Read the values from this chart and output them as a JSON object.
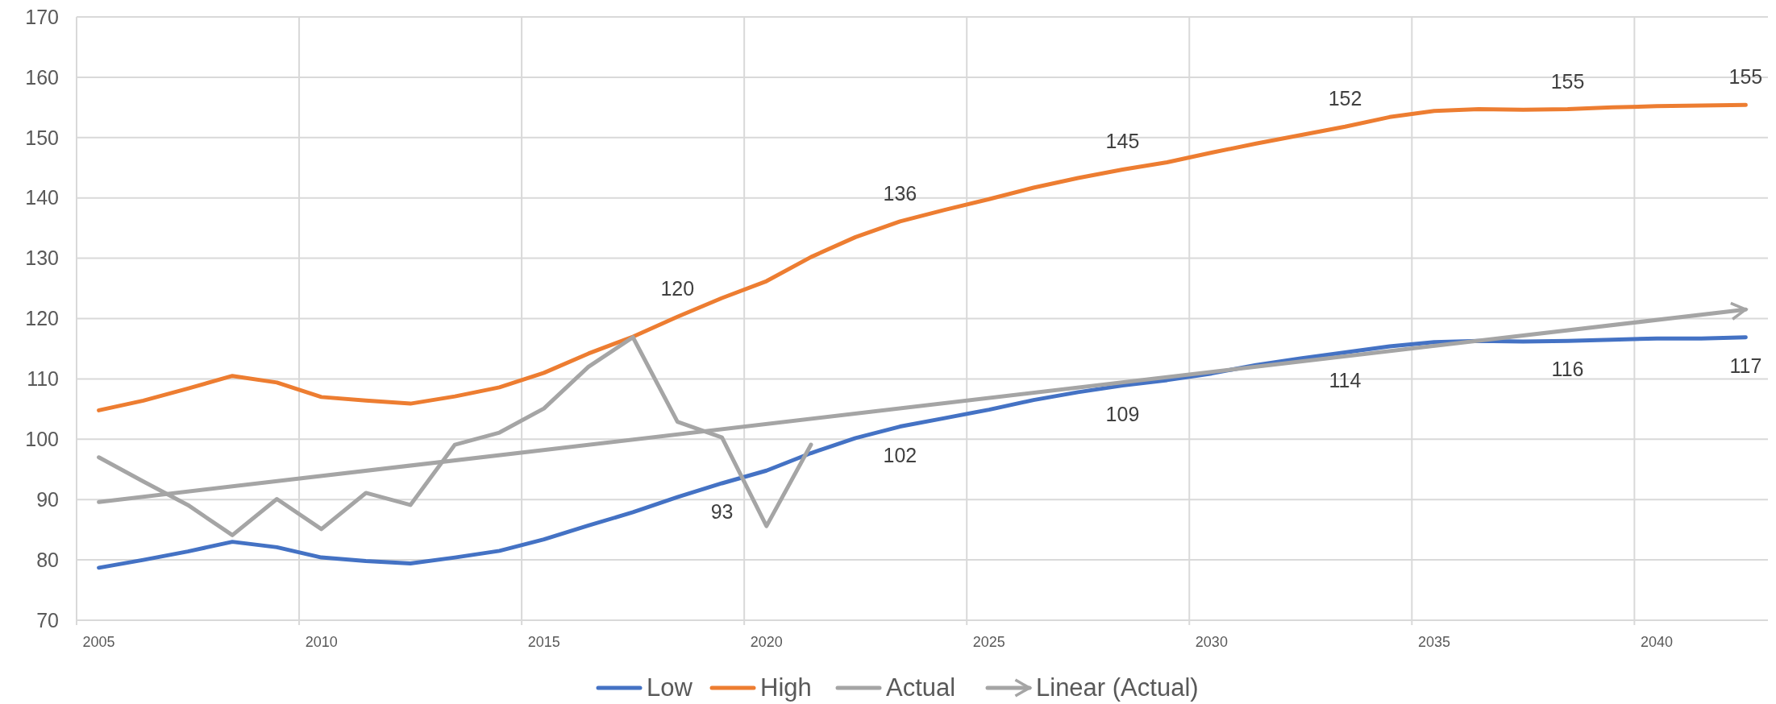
{
  "chart_data": {
    "type": "line",
    "xlim": [
      2004.5,
      2042.5
    ],
    "ylim": [
      70,
      170
    ],
    "xticks": [
      {
        "value": 2004.5,
        "label": null
      },
      2005,
      {
        "value": 2009.5,
        "label": null
      },
      2010,
      {
        "value": 2014.5,
        "label": null
      },
      2015,
      {
        "value": 2019.5,
        "label": null
      },
      2020,
      {
        "value": 2024.5,
        "label": null
      },
      2025,
      {
        "value": 2029.5,
        "label": null
      },
      2030,
      {
        "value": 2034.5,
        "label": null
      },
      2035,
      {
        "value": 2039.5,
        "label": null
      },
      2040
    ],
    "yticks": [
      70,
      80,
      90,
      100,
      110,
      120,
      130,
      140,
      150,
      160,
      170
    ],
    "grid": true,
    "legend": "bottom",
    "marker": "none",
    "line_style": "solid",
    "series": [
      {
        "name": "Low",
        "color": "#4472c4",
        "x": [
          2005,
          2006,
          2007,
          2008,
          2009,
          2010,
          2011,
          2012,
          2013,
          2014,
          2015,
          2016,
          2017,
          2018,
          2019,
          2020,
          2021,
          2022,
          2023,
          2024,
          2025,
          2026,
          2027,
          2028,
          2029,
          2030,
          2031,
          2032,
          2033,
          2034,
          2035,
          2036,
          2037,
          2038,
          2039,
          2040,
          2041,
          2042
        ],
        "values": [
          78.7,
          80.0,
          81.4,
          83.0,
          82.1,
          80.4,
          79.8,
          79.4,
          80.4,
          81.5,
          83.4,
          85.7,
          87.9,
          90.4,
          92.7,
          94.8,
          97.7,
          100.2,
          102.1,
          103.5,
          104.9,
          106.5,
          107.8,
          108.9,
          109.8,
          110.9,
          112.3,
          113.4,
          114.4,
          115.4,
          116.1,
          116.3,
          116.2,
          116.3,
          116.5,
          116.7,
          116.7,
          116.9
        ],
        "value_labels": [
          null,
          null,
          null,
          null,
          null,
          null,
          null,
          null,
          null,
          null,
          null,
          null,
          null,
          null,
          "93",
          null,
          null,
          null,
          "102",
          null,
          null,
          null,
          null,
          "109",
          null,
          null,
          null,
          null,
          "114",
          null,
          null,
          null,
          null,
          "116",
          null,
          null,
          null,
          "117"
        ]
      },
      {
        "name": "High",
        "color": "#ed7d31",
        "x": [
          2005,
          2006,
          2007,
          2008,
          2009,
          2010,
          2011,
          2012,
          2013,
          2014,
          2015,
          2016,
          2017,
          2018,
          2019,
          2020,
          2021,
          2022,
          2023,
          2024,
          2025,
          2026,
          2027,
          2028,
          2029,
          2030,
          2031,
          2032,
          2033,
          2034,
          2035,
          2036,
          2037,
          2038,
          2039,
          2040,
          2041,
          2042
        ],
        "values": [
          104.8,
          106.4,
          108.4,
          110.5,
          109.4,
          107.0,
          106.4,
          105.9,
          107.1,
          108.6,
          111.0,
          114.2,
          117.0,
          120.3,
          123.4,
          126.2,
          130.2,
          133.5,
          136.1,
          138.0,
          139.8,
          141.7,
          143.3,
          144.7,
          145.9,
          147.5,
          149.0,
          150.4,
          151.8,
          153.4,
          154.4,
          154.7,
          154.6,
          154.7,
          155.0,
          155.2,
          155.3,
          155.4
        ],
        "value_labels": [
          null,
          null,
          null,
          null,
          null,
          null,
          null,
          null,
          null,
          null,
          null,
          null,
          null,
          "120",
          null,
          null,
          null,
          null,
          "136",
          null,
          null,
          null,
          null,
          "145",
          null,
          null,
          null,
          null,
          "152",
          null,
          null,
          null,
          null,
          "155",
          null,
          null,
          null,
          "155"
        ]
      },
      {
        "name": "Actual",
        "color": "#a5a5a5",
        "x": [
          2005,
          2006,
          2007,
          2008,
          2009,
          2010,
          2011,
          2012,
          2013,
          2014,
          2015,
          2016,
          2017,
          2018,
          2019,
          2020,
          2021
        ],
        "values": [
          97.0,
          93.0,
          89.1,
          84.1,
          90.1,
          85.1,
          91.1,
          89.1,
          99.1,
          101.1,
          105.1,
          112.0,
          116.9,
          102.9,
          100.3,
          85.6,
          99.1
        ]
      },
      {
        "name": "Linear (Actual)",
        "color": "#a5a5a5",
        "type": "line",
        "x": [
          2005,
          2042
        ],
        "values": [
          89.6,
          121.5
        ]
      }
    ]
  }
}
